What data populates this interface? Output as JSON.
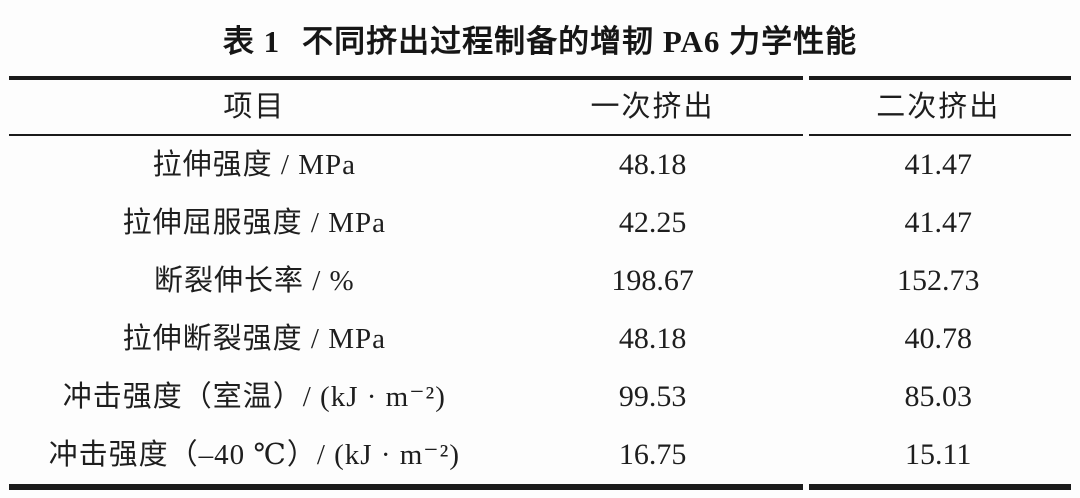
{
  "title": {
    "label": "表 1",
    "text": "不同挤出过程制备的增韧 PA6 力学性能"
  },
  "table": {
    "columns": [
      "项目",
      "一次挤出",
      "二次挤出"
    ],
    "rows": [
      {
        "item": "拉伸强度 / MPa",
        "first": "48.18",
        "second": "41.47"
      },
      {
        "item": "拉伸屈服强度 / MPa",
        "first": "42.25",
        "second": "41.47"
      },
      {
        "item": "断裂伸长率 / %",
        "first": "198.67",
        "second": "152.73"
      },
      {
        "item": "拉伸断裂强度 / MPa",
        "first": "48.18",
        "second": "40.78"
      },
      {
        "item": "冲击强度（室温）/ (kJ · m⁻²)",
        "first": "99.53",
        "second": "85.03"
      },
      {
        "item": "冲击强度（–40 ℃）/ (kJ · m⁻²)",
        "first": "16.75",
        "second": "15.11"
      }
    ]
  },
  "colors": {
    "background": "#fdfdfd",
    "text": "#1c1c1c",
    "rule": "#1b1b1b"
  }
}
